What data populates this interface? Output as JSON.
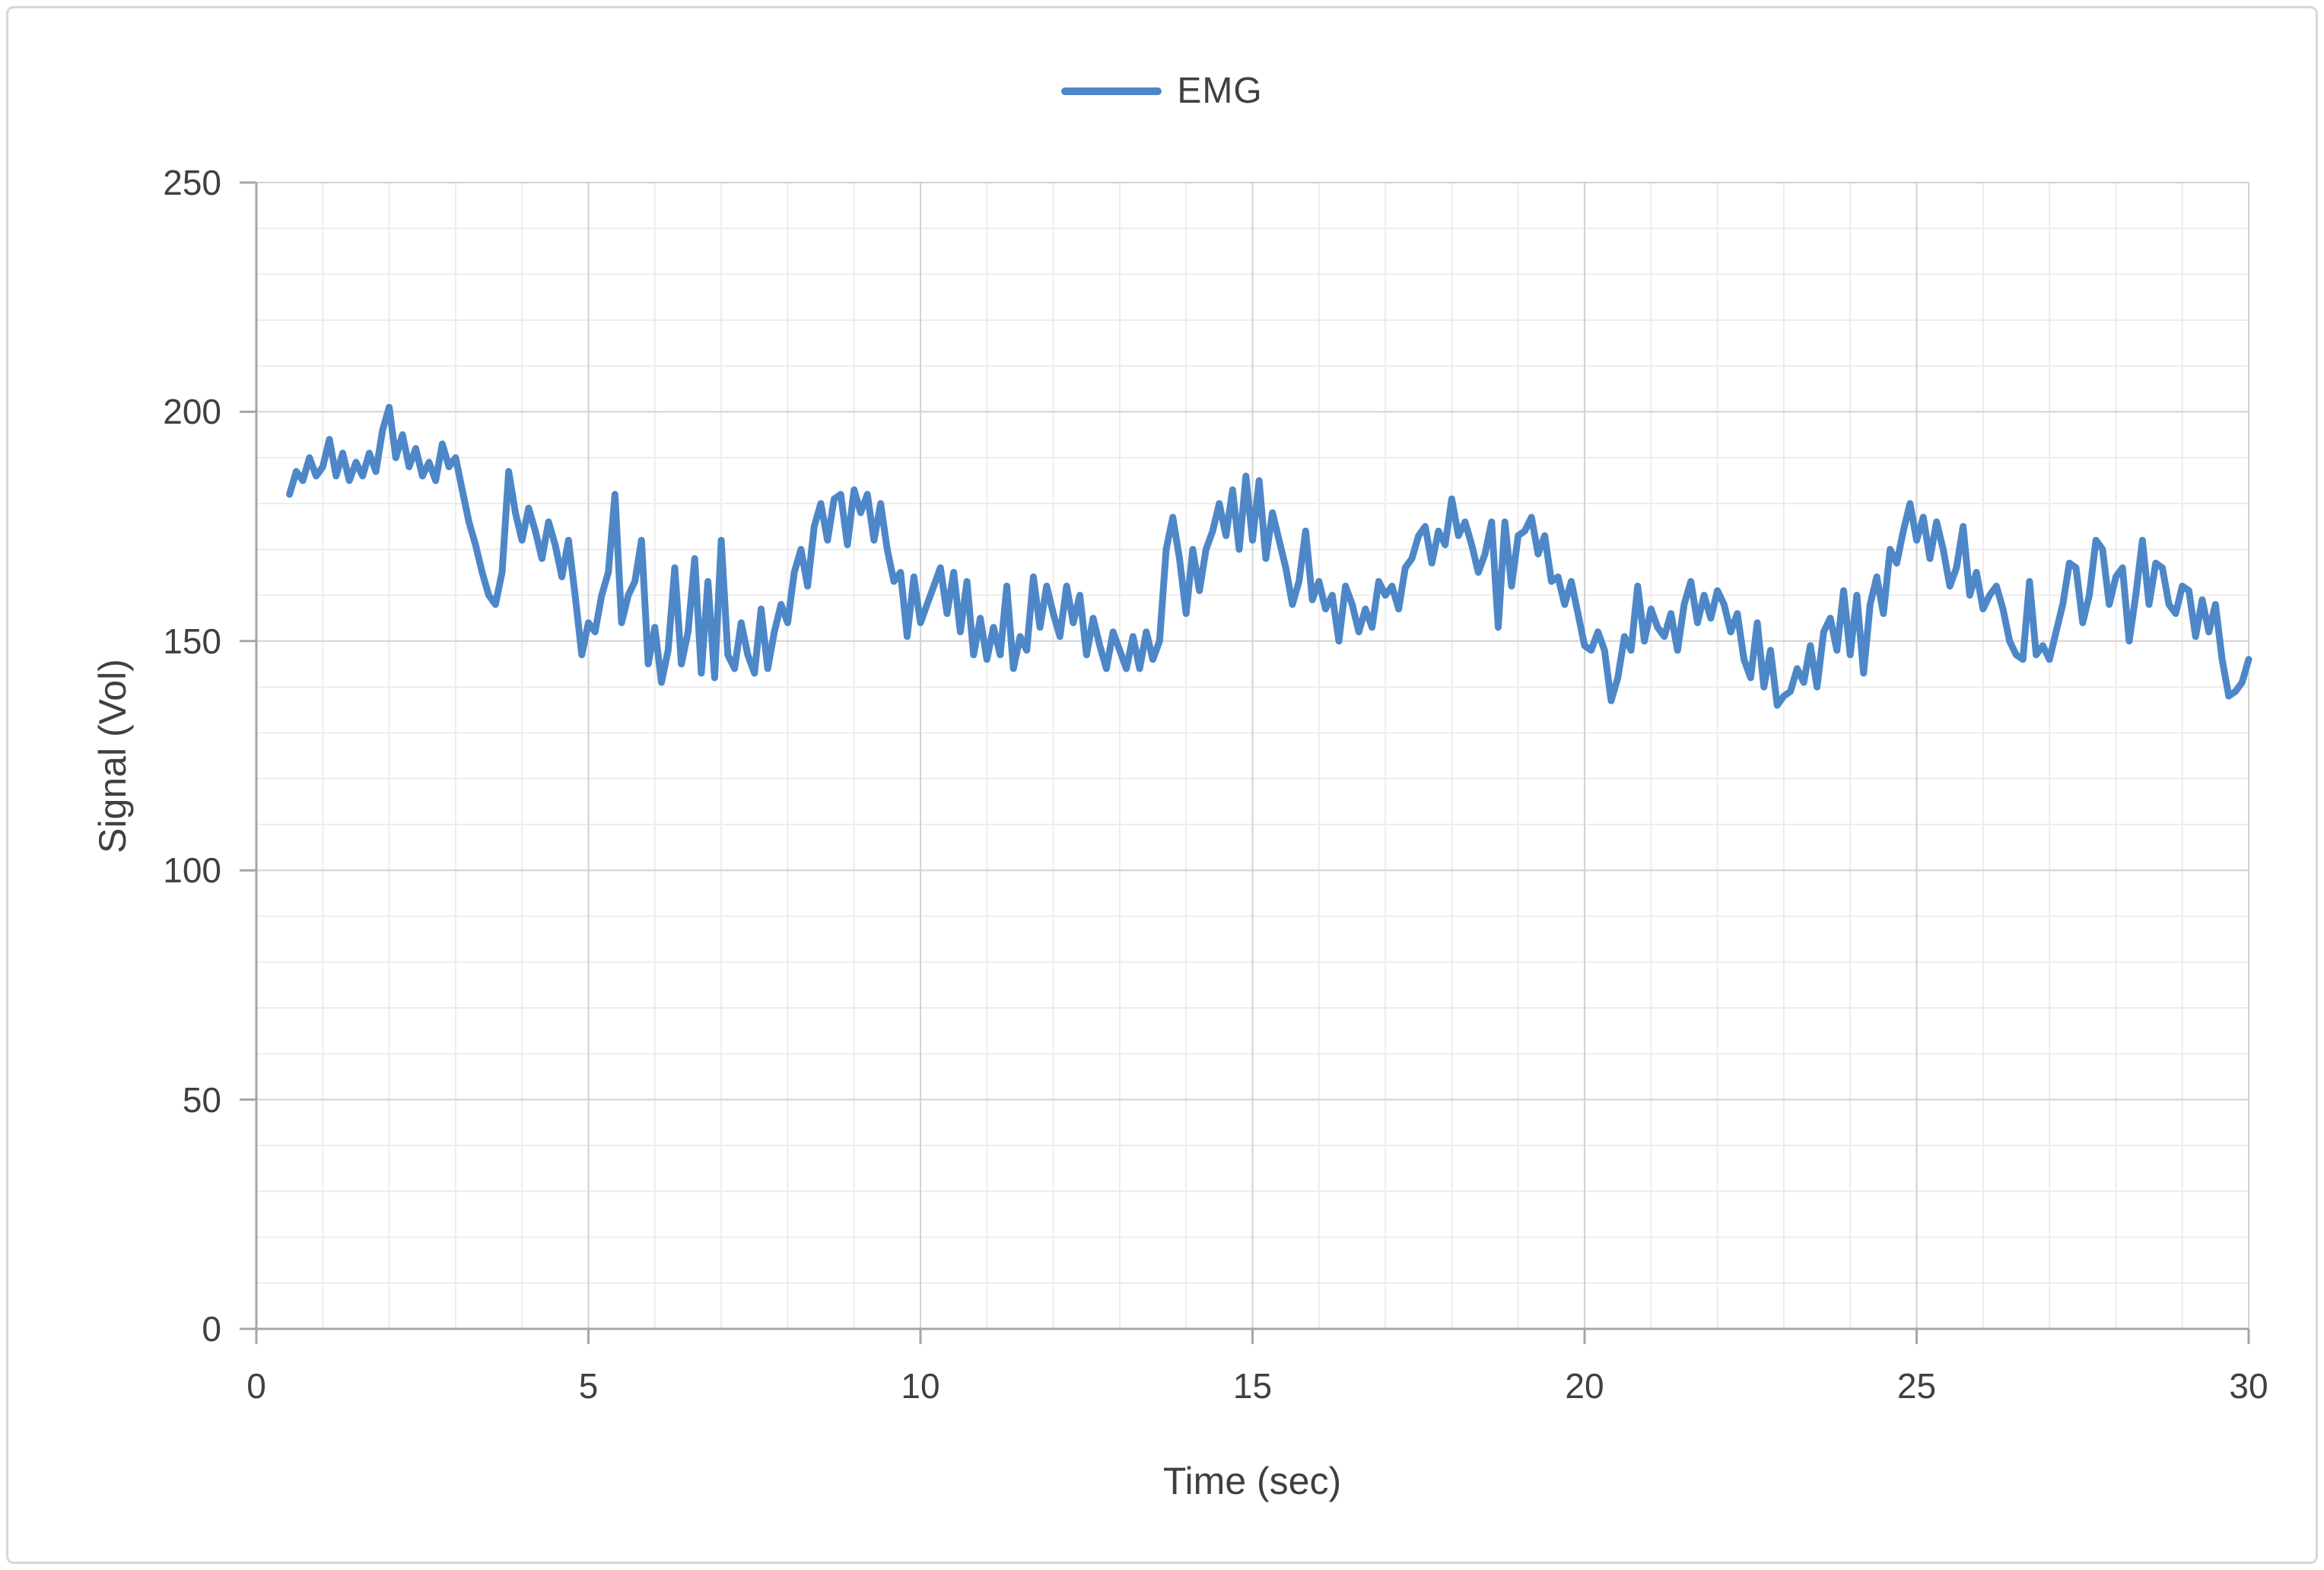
{
  "figure": {
    "background": "#ffffff",
    "border_color": "#d8d8d8"
  },
  "text_color": "#404040",
  "grid": {
    "minor_color": "#ececec",
    "major_color": "#d2d2d2",
    "axis_line_color": "#a6a6a6"
  },
  "chart_data": {
    "type": "line",
    "title": "",
    "xlabel": "Time (sec)",
    "ylabel": "Signal (Vol)",
    "xlim": [
      0,
      30
    ],
    "ylim": [
      0,
      250
    ],
    "x_tick_labels": [
      "0",
      "5",
      "10",
      "15",
      "20",
      "25",
      "30"
    ],
    "y_tick_labels": [
      "0",
      "50",
      "100",
      "150",
      "200",
      "250"
    ],
    "x_major_step": 5,
    "x_minor_step": 1,
    "y_major_step": 50,
    "y_minor_step": 10,
    "grid": true,
    "legend_position": "top-center",
    "series": [
      {
        "name": "EMG",
        "color": "#4e87c8",
        "t_start": 0.5,
        "t_step": 0.1,
        "values": [
          182,
          187,
          185,
          190,
          186,
          188,
          194,
          186,
          191,
          185,
          189,
          186,
          191,
          187,
          196,
          201,
          190,
          195,
          188,
          192,
          186,
          189,
          185,
          193,
          188,
          190,
          183,
          176,
          171,
          165,
          160,
          158,
          165,
          187,
          178,
          172,
          179,
          174,
          168,
          176,
          171,
          164,
          172,
          160,
          147,
          154,
          152,
          160,
          165,
          182,
          154,
          160,
          163,
          172,
          145,
          153,
          141,
          148,
          166,
          145,
          152,
          168,
          143,
          163,
          142,
          172,
          147,
          144,
          154,
          147,
          143,
          157,
          144,
          152,
          158,
          154,
          165,
          170,
          162,
          175,
          180,
          172,
          181,
          182,
          171,
          183,
          178,
          182,
          172,
          180,
          170,
          163,
          165,
          151,
          164,
          154,
          158,
          162,
          166,
          156,
          165,
          152,
          163,
          147,
          155,
          146,
          153,
          147,
          162,
          144,
          151,
          148,
          164,
          153,
          162,
          156,
          151,
          162,
          154,
          160,
          147,
          155,
          149,
          144,
          152,
          148,
          144,
          151,
          144,
          152,
          146,
          150,
          170,
          177,
          168,
          156,
          170,
          161,
          170,
          174,
          180,
          173,
          183,
          170,
          186,
          172,
          185,
          168,
          178,
          172,
          166,
          158,
          163,
          174,
          159,
          163,
          157,
          160,
          150,
          162,
          158,
          152,
          157,
          153,
          163,
          160,
          162,
          157,
          166,
          168,
          173,
          175,
          167,
          174,
          171,
          181,
          173,
          176,
          171,
          165,
          169,
          176,
          153,
          176,
          162,
          173,
          174,
          177,
          169,
          173,
          163,
          164,
          158,
          163,
          156,
          149,
          148,
          152,
          148,
          137,
          142,
          151,
          148,
          162,
          150,
          157,
          153,
          151,
          156,
          148,
          158,
          163,
          154,
          160,
          155,
          161,
          158,
          152,
          156,
          146,
          142,
          154,
          140,
          148,
          136,
          138,
          139,
          144,
          141,
          149,
          140,
          152,
          155,
          148,
          161,
          147,
          160,
          143,
          158,
          164,
          156,
          170,
          167,
          174,
          180,
          172,
          177,
          168,
          176,
          170,
          162,
          166,
          175,
          160,
          165,
          157,
          160,
          162,
          157,
          150,
          147,
          146,
          163,
          147,
          149,
          146,
          152,
          158,
          167,
          166,
          154,
          160,
          172,
          170,
          158,
          164,
          166,
          150,
          160,
          172,
          158,
          167,
          166,
          158,
          156,
          162,
          161,
          151,
          159,
          152,
          158,
          146,
          138,
          139,
          141,
          146
        ]
      }
    ]
  }
}
